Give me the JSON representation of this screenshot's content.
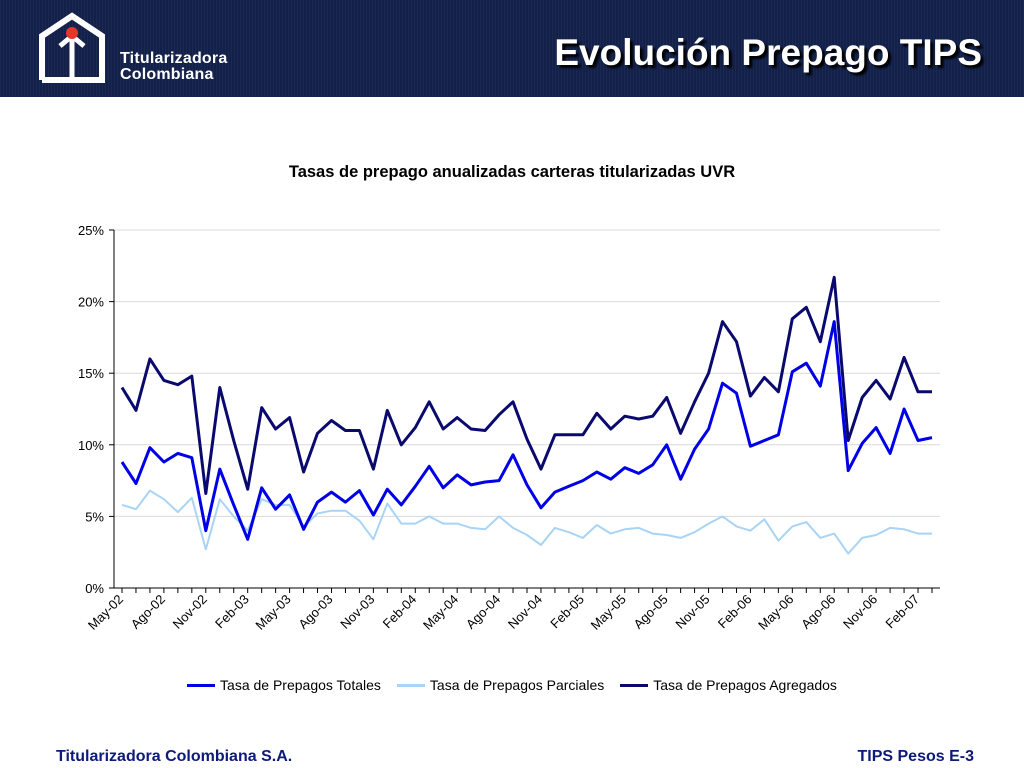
{
  "header": {
    "logo_line1": "Titularizadora",
    "logo_line2": "Colombiana",
    "title": "Evolución Prepago TIPS",
    "background_color": "#13214a",
    "logo_dot_color": "#e8352b"
  },
  "chart_data": {
    "type": "line",
    "title": "Tasas de prepago anualizadas carteras titularizadas UVR",
    "xlabel": "",
    "ylabel": "",
    "ylim": [
      0,
      0.25
    ],
    "yticks": [
      0,
      0.05,
      0.1,
      0.15,
      0.2,
      0.25
    ],
    "ytick_labels": [
      "0%",
      "5%",
      "10%",
      "15%",
      "20%",
      "25%"
    ],
    "grid": true,
    "legend_position": "bottom",
    "x": [
      "May-02",
      "Jun-02",
      "Jul-02",
      "Ago-02",
      "Sep-02",
      "Oct-02",
      "Nov-02",
      "Dic-02",
      "Ene-03",
      "Feb-03",
      "Mar-03",
      "Abr-03",
      "May-03",
      "Jun-03",
      "Jul-03",
      "Ago-03",
      "Sep-03",
      "Oct-03",
      "Nov-03",
      "Dic-03",
      "Ene-04",
      "Feb-04",
      "Mar-04",
      "Abr-04",
      "May-04",
      "Jun-04",
      "Jul-04",
      "Ago-04",
      "Sep-04",
      "Oct-04",
      "Nov-04",
      "Dic-04",
      "Ene-05",
      "Feb-05",
      "Mar-05",
      "Abr-05",
      "May-05",
      "Jun-05",
      "Jul-05",
      "Ago-05",
      "Sep-05",
      "Oct-05",
      "Nov-05",
      "Dic-05",
      "Ene-06",
      "Feb-06",
      "Mar-06",
      "Abr-06",
      "May-06",
      "Jun-06",
      "Jul-06",
      "Ago-06",
      "Sep-06",
      "Oct-06",
      "Nov-06",
      "Dic-06",
      "Ene-07",
      "Feb-07",
      "Mar-07"
    ],
    "x_tick_labels": [
      "May-02",
      "Ago-02",
      "Nov-02",
      "Feb-03",
      "May-03",
      "Ago-03",
      "Nov-03",
      "Feb-04",
      "May-04",
      "Ago-04",
      "Nov-04",
      "Feb-05",
      "May-05",
      "Ago-05",
      "Nov-05",
      "Feb-06",
      "May-06",
      "Ago-06",
      "Nov-06",
      "Feb-07"
    ],
    "series": [
      {
        "name": "Tasa de Prepagos Totales",
        "color": "#0000e6",
        "values": [
          0.088,
          0.073,
          0.098,
          0.088,
          0.094,
          0.091,
          0.04,
          0.083,
          0.058,
          0.034,
          0.07,
          0.055,
          0.065,
          0.041,
          0.06,
          0.067,
          0.06,
          0.068,
          0.051,
          0.069,
          0.058,
          0.071,
          0.085,
          0.07,
          0.079,
          0.072,
          0.074,
          0.075,
          0.093,
          0.072,
          0.056,
          0.067,
          0.071,
          0.075,
          0.081,
          0.076,
          0.084,
          0.08,
          0.086,
          0.1,
          0.076,
          0.097,
          0.111,
          0.143,
          0.136,
          0.099,
          0.103,
          0.107,
          0.151,
          0.157,
          0.141,
          0.186,
          0.082,
          0.101,
          0.112,
          0.094,
          0.125,
          0.103,
          0.105
        ]
      },
      {
        "name": "Tasa de Prepagos Parciales",
        "color": "#a9d4f5",
        "values": [
          0.058,
          0.055,
          0.068,
          0.062,
          0.053,
          0.063,
          0.027,
          0.062,
          0.05,
          0.04,
          0.062,
          0.058,
          0.058,
          0.043,
          0.052,
          0.054,
          0.054,
          0.047,
          0.034,
          0.059,
          0.045,
          0.045,
          0.05,
          0.045,
          0.045,
          0.042,
          0.041,
          0.05,
          0.042,
          0.037,
          0.03,
          0.042,
          0.039,
          0.035,
          0.044,
          0.038,
          0.041,
          0.042,
          0.038,
          0.037,
          0.035,
          0.039,
          0.045,
          0.05,
          0.043,
          0.04,
          0.048,
          0.033,
          0.043,
          0.046,
          0.035,
          0.038,
          0.024,
          0.035,
          0.037,
          0.042,
          0.041,
          0.038,
          0.038
        ]
      },
      {
        "name": "Tasa de Prepagos Agregados",
        "color": "#0a0a6e",
        "values": [
          0.14,
          0.124,
          0.16,
          0.145,
          0.142,
          0.148,
          0.066,
          0.14,
          0.103,
          0.069,
          0.126,
          0.111,
          0.119,
          0.081,
          0.108,
          0.117,
          0.11,
          0.11,
          0.083,
          0.124,
          0.1,
          0.112,
          0.13,
          0.111,
          0.119,
          0.111,
          0.11,
          0.121,
          0.13,
          0.104,
          0.083,
          0.107,
          0.107,
          0.107,
          0.122,
          0.111,
          0.12,
          0.118,
          0.12,
          0.133,
          0.108,
          0.13,
          0.15,
          0.186,
          0.172,
          0.134,
          0.147,
          0.137,
          0.188,
          0.196,
          0.172,
          0.217,
          0.103,
          0.133,
          0.145,
          0.132,
          0.161,
          0.137,
          0.137
        ]
      }
    ]
  },
  "footer": {
    "left": "Titularizadora Colombiana S.A.",
    "right": "TIPS Pesos E-3",
    "text_color": "#0d1a7a"
  }
}
